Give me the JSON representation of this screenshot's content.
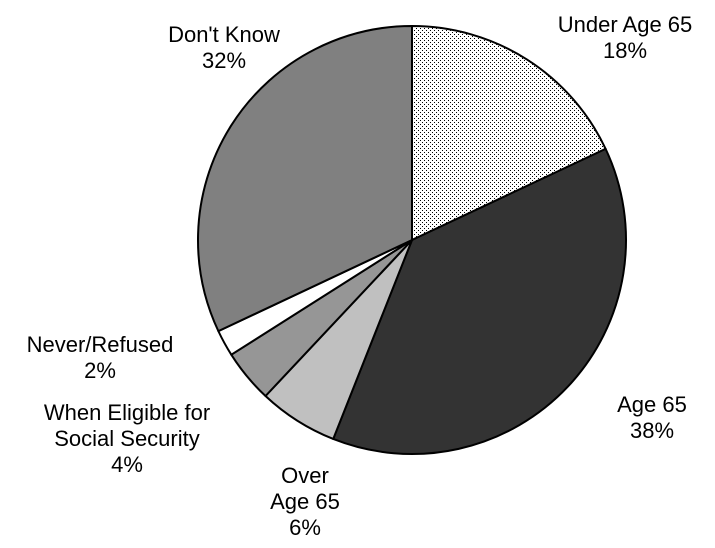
{
  "chart_data": {
    "type": "pie",
    "start": "12 o'clock",
    "direction": "clockwise",
    "slices": [
      {
        "name": "Under Age 65",
        "label_lines": [
          "Under Age 65",
          "18%"
        ],
        "value": 18,
        "fill": "dots"
      },
      {
        "name": "Age 65",
        "label_lines": [
          "Age 65",
          "38%"
        ],
        "value": 38,
        "fill": "#333333"
      },
      {
        "name": "Over Age 65",
        "label_lines": [
          "Over",
          "Age 65",
          "6%"
        ],
        "value": 6,
        "fill": "#c0c0c0"
      },
      {
        "name": "When Eligible for Social Security",
        "label_lines": [
          "When Eligible for",
          "Social Security",
          "4%"
        ],
        "value": 4,
        "fill": "#969696"
      },
      {
        "name": "Never/Refused",
        "label_lines": [
          "Never/Refused",
          "2%"
        ],
        "value": 2,
        "fill": "#ffffff"
      },
      {
        "name": "Don't Know",
        "label_lines": [
          "Don't Know",
          "32%"
        ],
        "value": 32,
        "fill": "#808080"
      }
    ]
  }
}
